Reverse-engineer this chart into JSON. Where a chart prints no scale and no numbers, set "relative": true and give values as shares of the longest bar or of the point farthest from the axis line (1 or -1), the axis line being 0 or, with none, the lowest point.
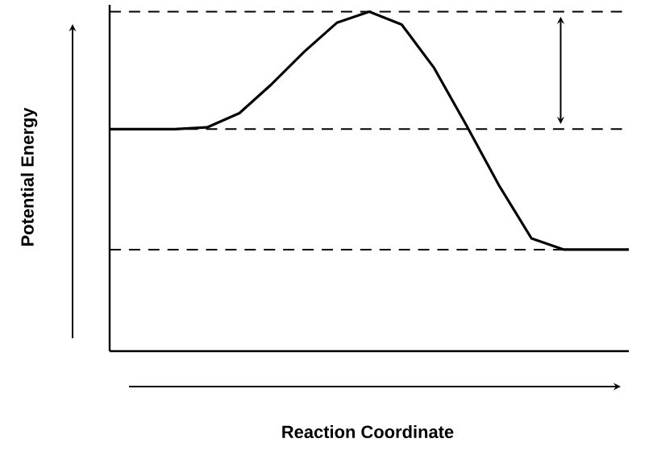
{
  "chart_data": {
    "type": "line",
    "relative": true,
    "xlabel": "Reaction Coordinate",
    "ylabel": "Potential Energy",
    "categories": [
      null,
      null,
      null,
      null,
      null,
      null,
      null,
      null,
      null,
      null,
      null,
      null,
      null,
      null,
      null,
      null,
      null
    ],
    "series": [
      {
        "color": "#000000",
        "values": [
          0.654,
          0.654,
          0.654,
          0.659,
          0.701,
          0.787,
          0.882,
          0.967,
          1,
          0.962,
          0.834,
          0.664,
          0.488,
          0.332,
          0.299,
          0.299,
          0.299
        ]
      }
    ],
    "ref_lines": [
      {
        "axis": "y",
        "value": 1,
        "line_style": "dashed",
        "color": "#000000"
      },
      {
        "axis": "y",
        "value": 0.654,
        "line_style": "dashed",
        "color": "#000000"
      },
      {
        "axis": "y",
        "value": 0.299,
        "line_style": "dashed",
        "color": "#000000"
      }
    ]
  }
}
